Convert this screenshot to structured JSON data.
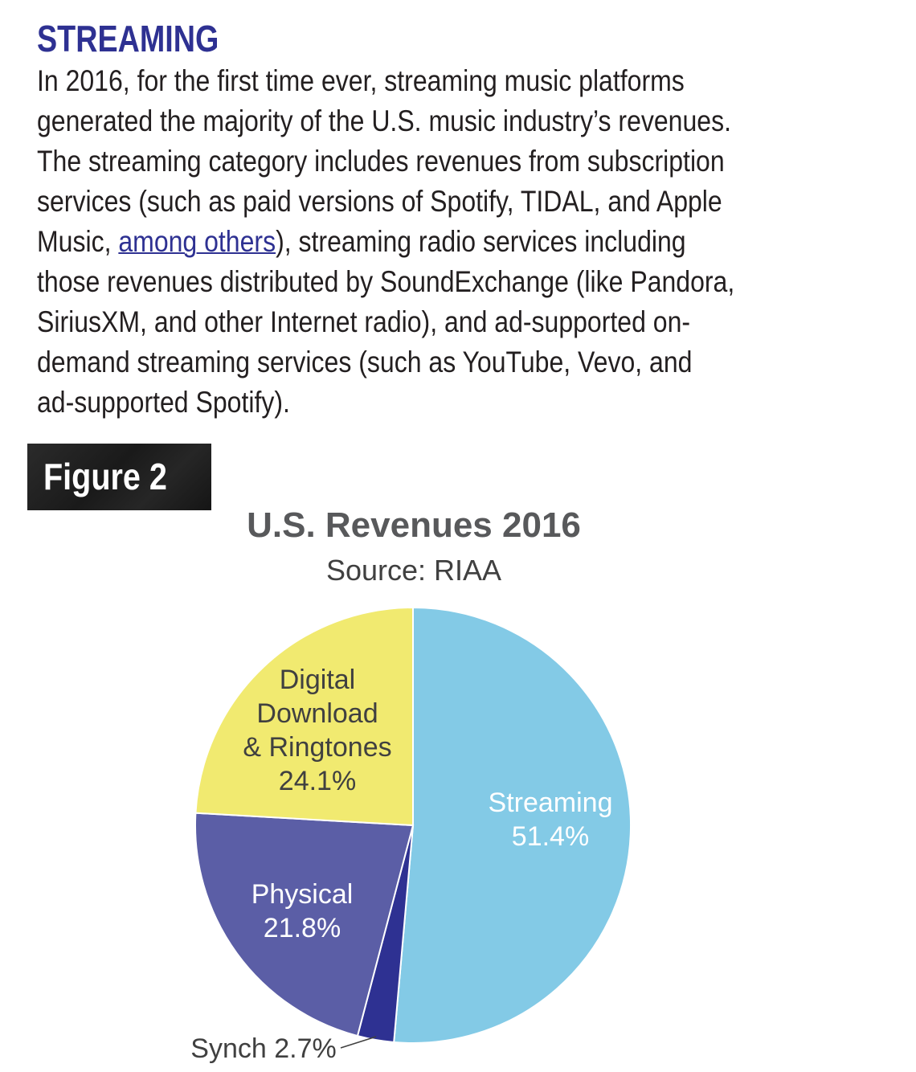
{
  "section": {
    "heading": "STREAMING",
    "paragraph": {
      "line1": "In 2016, for the first time ever, streaming music platforms",
      "line2": "generated the majority of the U.S. music industry’s revenues.",
      "line3": "The streaming category includes revenues from subscription",
      "line4": "services (such as paid versions of Spotify, TIDAL, and Apple",
      "line5_before_link": "Music, ",
      "link_text": "among others",
      "line5_after_link": "), streaming radio services including",
      "line6": "those revenues distributed by SoundExchange (like Pandora,",
      "line7": "SiriusXM, and other Internet radio), and ad-supported on-",
      "line8": "demand streaming services (such as YouTube, Vevo, and",
      "line9": "ad-supported Spotify)."
    }
  },
  "figure": {
    "badge_label": "Figure 2"
  },
  "chart_data": {
    "type": "pie",
    "title": "U.S. Revenues 2016",
    "subtitle": "Source: RIAA",
    "unit": "%",
    "slices": [
      {
        "label_lines": [
          "Streaming",
          "51.4%"
        ],
        "value": 51.4,
        "color": "#83cae6",
        "text_color": "#ffffff"
      },
      {
        "label_lines": [
          "Synch 2.7%"
        ],
        "value": 2.7,
        "color": "#2e3192",
        "text_color": "#404040",
        "external": true
      },
      {
        "label_lines": [
          "Physical",
          "21.8%"
        ],
        "value": 21.8,
        "color": "#5b5ea6",
        "text_color": "#ffffff"
      },
      {
        "label_lines": [
          "Digital",
          "Download",
          "& Ringtones",
          "24.1%"
        ],
        "value": 24.1,
        "color": "#f1ea70",
        "text_color": "#404040"
      }
    ],
    "start": "12 o'clock, clockwise",
    "slice_borders": "#ffffff"
  },
  "colors": {
    "heading": "#2e3192",
    "link": "#2e3192",
    "body_text": "#231f20",
    "chart_title": "#58595b",
    "badge_background": "#1e1e1e"
  }
}
